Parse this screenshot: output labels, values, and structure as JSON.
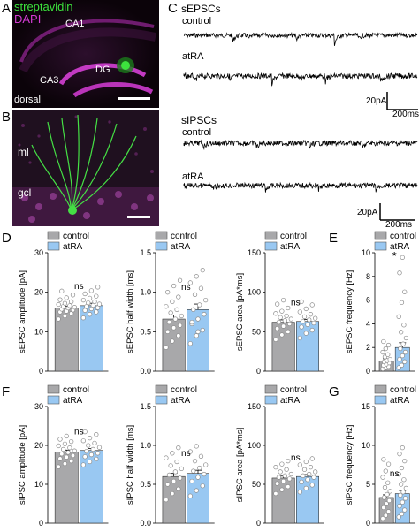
{
  "panels": {
    "A": "A",
    "B": "B",
    "C": "C",
    "D": "D",
    "E": "E",
    "F": "F",
    "G": "G"
  },
  "micro_a": {
    "stain1": "streptavidin",
    "stain2": "DAPI",
    "ca1": "CA1",
    "ca3": "CA3",
    "dg": "DG",
    "dorsal": "dorsal",
    "colors": {
      "stain1": "#3de23d",
      "stain2": "#d23bd2"
    }
  },
  "micro_b": {
    "ml": "ml",
    "gcl": "gcl"
  },
  "traces": {
    "sepsc_title": "sEPSCs",
    "sipsc_title": "sIPSCs",
    "control": "control",
    "atra": "atRA",
    "scale_current": "20pA",
    "scale_time_top": "200ms",
    "scale_time_bottom": "200ms"
  },
  "legend": {
    "control": "control",
    "atra": "atRA"
  },
  "colors": {
    "control_bar": "#a8a8aa",
    "atra_bar": "#99c8f2",
    "dot": "#ffffff",
    "dot_stroke": "#8a8a8a"
  },
  "chart_data": [
    {
      "type": "bar",
      "panel": "D",
      "ylabel": "sEPSC amplitude [pA]",
      "categories": [
        "control",
        "atRA"
      ],
      "values": [
        16.0,
        16.6
      ],
      "sem": [
        0.5,
        0.6
      ],
      "ylim": [
        0,
        30
      ],
      "yticks": [
        "0",
        "10",
        "20",
        "30"
      ],
      "annotation": "ns",
      "points": [
        [
          13.2,
          14,
          14.6,
          15,
          15.2,
          15.5,
          15.7,
          16,
          16.2,
          16.4,
          16.6,
          16.9,
          17.2,
          17.6,
          18.1,
          18.6,
          19.3,
          20.3
        ],
        [
          13.5,
          14.4,
          15,
          15.4,
          15.8,
          16.1,
          16.4,
          16.7,
          17,
          17.3,
          17.6,
          18,
          18.5,
          19,
          19.6,
          20.4,
          21.3
        ]
      ]
    },
    {
      "type": "bar",
      "panel": "D",
      "ylabel": "sEPSC half width [ms]",
      "categories": [
        "control",
        "atRA"
      ],
      "values": [
        0.66,
        0.78
      ],
      "sem": [
        0.05,
        0.07
      ],
      "ylim": [
        0,
        1.5
      ],
      "yticks": [
        "0.0",
        "0.5",
        "1.0",
        "1.5"
      ],
      "annotation": "ns",
      "points": [
        [
          0.3,
          0.38,
          0.45,
          0.5,
          0.55,
          0.58,
          0.62,
          0.66,
          0.7,
          0.74,
          0.78,
          0.82,
          0.88,
          0.94,
          1.0,
          1.08,
          1.15
        ],
        [
          0.35,
          0.45,
          0.52,
          0.6,
          0.66,
          0.72,
          0.78,
          0.84,
          0.9,
          0.97,
          1.05,
          1.12,
          1.2,
          1.28,
          0.62,
          0.5
        ]
      ]
    },
    {
      "type": "bar",
      "panel": "D",
      "ylabel": "sEPSC area [pA*ms]",
      "categories": [
        "control",
        "atRA"
      ],
      "values": [
        62,
        63
      ],
      "sem": [
        3,
        2.5
      ],
      "ylim": [
        0,
        150
      ],
      "yticks": [
        "0",
        "50",
        "100",
        "150"
      ],
      "annotation": "ns",
      "points": [
        [
          40,
          46,
          50,
          54,
          57,
          60,
          62,
          64,
          66,
          68,
          70,
          73,
          76,
          80,
          85,
          90
        ],
        [
          42,
          48,
          52,
          56,
          59,
          61,
          63,
          65,
          67,
          69,
          72,
          75,
          79,
          84,
          88
        ]
      ]
    },
    {
      "type": "bar",
      "panel": "E",
      "ylabel": "sEPSC frequency [Hz]",
      "categories": [
        "control",
        "atRA"
      ],
      "values": [
        0.85,
        2.0
      ],
      "sem": [
        0.2,
        0.4
      ],
      "ylim": [
        0,
        10
      ],
      "yticks": [
        "0",
        "2",
        "4",
        "6",
        "8",
        "10"
      ],
      "annotation": "*",
      "points": [
        [
          0.2,
          0.3,
          0.4,
          0.5,
          0.6,
          0.7,
          0.8,
          0.9,
          1.0,
          1.2,
          1.4,
          1.6,
          1.9,
          2.2,
          2.5
        ],
        [
          0.3,
          0.5,
          0.8,
          1.0,
          1.3,
          1.6,
          1.9,
          2.3,
          2.8,
          3.3,
          3.9,
          4.6,
          5.8,
          6.7,
          8.3,
          9.6
        ]
      ]
    },
    {
      "type": "bar",
      "panel": "F",
      "ylabel": "sIPSC amplitude [pA]",
      "categories": [
        "control",
        "atRA"
      ],
      "values": [
        18.3,
        18.7
      ],
      "sem": [
        0.5,
        0.5
      ],
      "ylim": [
        0,
        30
      ],
      "yticks": [
        "0",
        "10",
        "20",
        "30"
      ],
      "annotation": "ns",
      "points": [
        [
          14.5,
          15.3,
          16,
          16.6,
          17,
          17.4,
          17.8,
          18.2,
          18.6,
          19,
          19.4,
          19.9,
          20.4,
          21,
          21.6,
          22.4
        ],
        [
          15,
          15.8,
          16.5,
          17.1,
          17.6,
          18,
          18.5,
          19,
          19.5,
          20,
          20.6,
          21.2,
          21.9,
          22.8,
          23.5
        ]
      ]
    },
    {
      "type": "bar",
      "panel": "F",
      "ylabel": "sIPSC half width [ms]",
      "categories": [
        "control",
        "atRA"
      ],
      "values": [
        0.6,
        0.64
      ],
      "sem": [
        0.04,
        0.04
      ],
      "ylim": [
        0,
        1.5
      ],
      "yticks": [
        "0.0",
        "0.5",
        "1.0",
        "1.5"
      ],
      "annotation": "ns",
      "points": [
        [
          0.3,
          0.38,
          0.44,
          0.5,
          0.54,
          0.58,
          0.62,
          0.66,
          0.7,
          0.74,
          0.79,
          0.84,
          0.9,
          0.97
        ],
        [
          0.35,
          0.42,
          0.48,
          0.54,
          0.59,
          0.63,
          0.67,
          0.71,
          0.75,
          0.8,
          0.86,
          0.92,
          0.99
        ]
      ]
    },
    {
      "type": "bar",
      "panel": "F",
      "ylabel": "sIPSC area [pA*ms]",
      "categories": [
        "control",
        "atRA"
      ],
      "values": [
        58,
        60
      ],
      "sem": [
        2.5,
        2.5
      ],
      "ylim": [
        0,
        150
      ],
      "yticks": [
        "0",
        "50",
        "100",
        "150"
      ],
      "annotation": "ns",
      "points": [
        [
          38,
          43,
          47,
          51,
          54,
          57,
          59,
          61,
          63,
          66,
          69,
          72,
          76,
          80
        ],
        [
          40,
          45,
          49,
          53,
          56,
          59,
          61,
          63,
          66,
          69,
          72,
          75,
          79,
          83
        ]
      ]
    },
    {
      "type": "bar",
      "panel": "G",
      "ylabel": "sIPSC frequency [Hz]",
      "categories": [
        "control",
        "atRA"
      ],
      "values": [
        3.3,
        3.8
      ],
      "sem": [
        0.35,
        0.4
      ],
      "ylim": [
        0,
        15
      ],
      "yticks": [
        "0",
        "5",
        "10",
        "15"
      ],
      "annotation": "ns",
      "points": [
        [
          0.6,
          1.0,
          1.5,
          2.0,
          2.5,
          2.9,
          3.3,
          3.7,
          4.1,
          4.6,
          5.2,
          5.9,
          6.7,
          7.6,
          8.2
        ],
        [
          0.8,
          1.2,
          1.7,
          2.2,
          2.7,
          3.2,
          3.6,
          4.0,
          4.5,
          5.0,
          5.6,
          6.3,
          7.1,
          8.0,
          8.9,
          9.7
        ]
      ]
    }
  ]
}
